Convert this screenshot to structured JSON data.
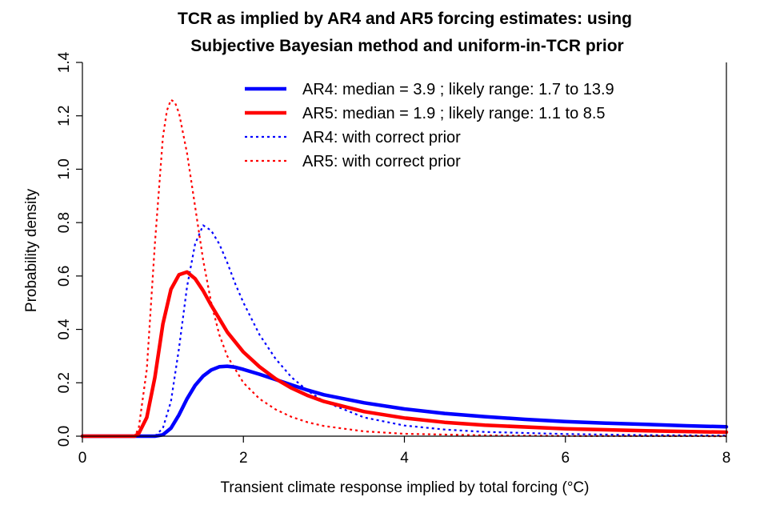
{
  "chart_data": {
    "type": "line",
    "title": [
      "TCR as implied by AR4 and AR5 forcing estimates: using",
      "Subjective Bayesian method and uniform-in-TCR prior"
    ],
    "xlabel": "Transient climate response implied by total forcing (°C)",
    "ylabel": "Probability density",
    "xlim": [
      0,
      8
    ],
    "ylim": [
      0,
      1.4
    ],
    "xticks": [
      0,
      2,
      4,
      6,
      8
    ],
    "xtick_labels": [
      "0",
      "2",
      "4",
      "6",
      "8"
    ],
    "yticks": [
      0.0,
      0.2,
      0.4,
      0.6,
      0.8,
      1.0,
      1.2,
      1.4
    ],
    "ytick_labels": [
      "0.0",
      "0.2",
      "0.4",
      "0.6",
      "0.8",
      "1.0",
      "1.2",
      "1.4"
    ],
    "legend_position": "top-right",
    "series": [
      {
        "name": "AR4: median = 3.9 ; likely range: 1.7 to 13.9",
        "color": "#0000ff",
        "style": "solid",
        "x": [
          0,
          0.9,
          1.0,
          1.1,
          1.2,
          1.3,
          1.4,
          1.5,
          1.6,
          1.7,
          1.8,
          1.9,
          2.0,
          2.2,
          2.4,
          2.6,
          2.8,
          3.0,
          3.5,
          4.0,
          4.5,
          5.0,
          5.5,
          6.0,
          6.5,
          7.0,
          7.5,
          8.0
        ],
        "y": [
          0,
          0,
          0.005,
          0.03,
          0.08,
          0.14,
          0.19,
          0.225,
          0.248,
          0.26,
          0.262,
          0.258,
          0.25,
          0.232,
          0.212,
          0.192,
          0.172,
          0.155,
          0.125,
          0.102,
          0.085,
          0.073,
          0.063,
          0.055,
          0.049,
          0.044,
          0.039,
          0.035
        ]
      },
      {
        "name": "AR5: median = 1.9 ; likely range: 1.1 to 8.5",
        "color": "#ff0000",
        "style": "solid",
        "x": [
          0,
          0.65,
          0.7,
          0.8,
          0.9,
          1.0,
          1.1,
          1.2,
          1.3,
          1.4,
          1.5,
          1.6,
          1.7,
          1.8,
          2.0,
          2.2,
          2.4,
          2.6,
          2.8,
          3.0,
          3.5,
          4.0,
          4.5,
          5.0,
          6.0,
          7.0,
          8.0
        ],
        "y": [
          0,
          0,
          0.01,
          0.07,
          0.22,
          0.42,
          0.55,
          0.605,
          0.615,
          0.59,
          0.545,
          0.49,
          0.44,
          0.39,
          0.315,
          0.26,
          0.215,
          0.18,
          0.152,
          0.13,
          0.092,
          0.068,
          0.052,
          0.041,
          0.028,
          0.02,
          0.015
        ]
      },
      {
        "name": "AR4: with correct prior",
        "color": "#0000ff",
        "style": "dotted",
        "x": [
          0,
          0.9,
          1.0,
          1.1,
          1.2,
          1.3,
          1.4,
          1.5,
          1.6,
          1.7,
          1.8,
          1.9,
          2.0,
          2.2,
          2.4,
          2.6,
          2.8,
          3.0,
          3.5,
          4.0,
          4.5,
          5.0,
          6.0,
          7.0,
          8.0
        ],
        "y": [
          0,
          0,
          0.03,
          0.13,
          0.33,
          0.56,
          0.72,
          0.79,
          0.77,
          0.72,
          0.65,
          0.57,
          0.5,
          0.38,
          0.29,
          0.22,
          0.17,
          0.13,
          0.07,
          0.04,
          0.025,
          0.016,
          0.008,
          0.004,
          0.002
        ]
      },
      {
        "name": "AR5: with correct prior",
        "color": "#ff0000",
        "style": "dotted",
        "x": [
          0,
          0.65,
          0.7,
          0.8,
          0.9,
          1.0,
          1.05,
          1.1,
          1.15,
          1.2,
          1.3,
          1.4,
          1.5,
          1.6,
          1.7,
          1.8,
          2.0,
          2.2,
          2.4,
          2.6,
          2.8,
          3.0,
          3.5,
          4.0,
          5.0,
          6.0,
          8.0
        ],
        "y": [
          0,
          0,
          0.03,
          0.25,
          0.72,
          1.12,
          1.22,
          1.26,
          1.25,
          1.21,
          1.06,
          0.86,
          0.66,
          0.5,
          0.38,
          0.3,
          0.2,
          0.14,
          0.1,
          0.072,
          0.052,
          0.038,
          0.018,
          0.009,
          0.003,
          0.001,
          0.0
        ]
      }
    ]
  }
}
